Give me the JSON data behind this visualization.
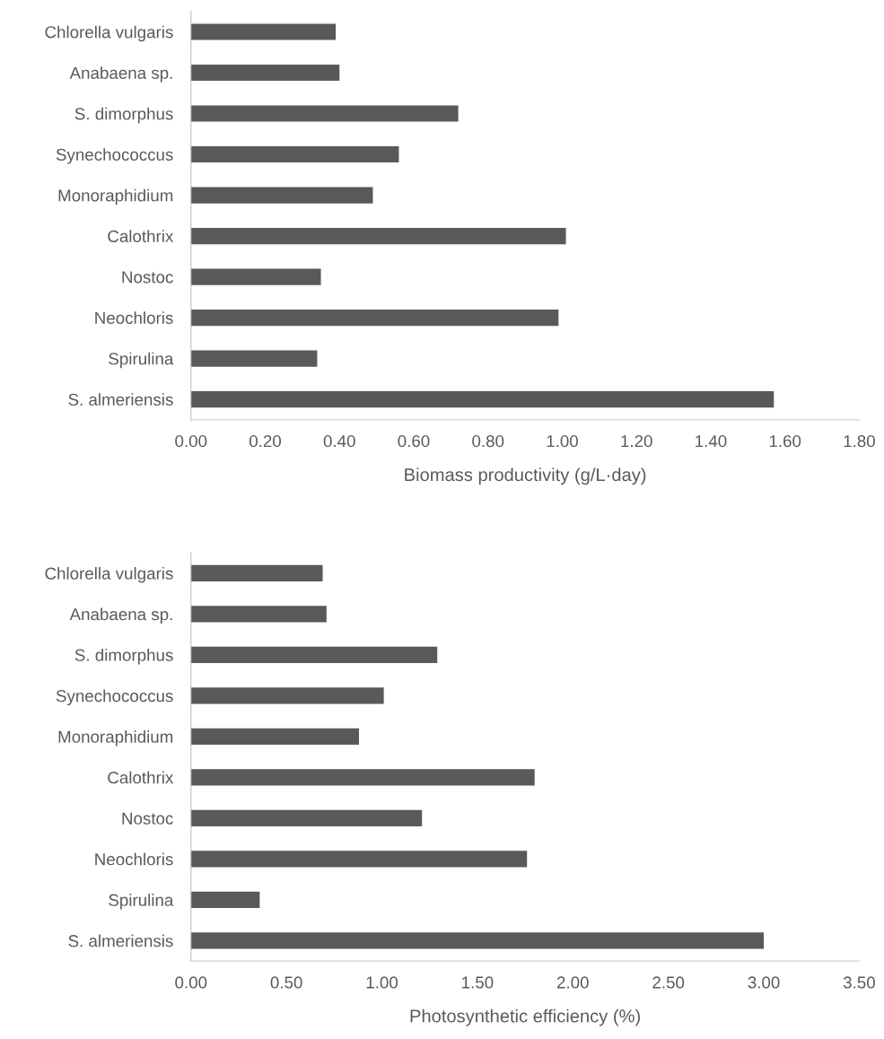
{
  "chart_data": [
    {
      "type": "bar",
      "orientation": "horizontal",
      "xlabel": "Biomass productivity (g/L·day)",
      "categories": [
        "Chlorella vulgaris",
        "Anabaena sp.",
        "S. dimorphus",
        "Synechococcus",
        "Monoraphidium",
        "Calothrix",
        "Nostoc",
        "Neochloris",
        "Spirulina",
        "S. almeriensis"
      ],
      "values": [
        0.39,
        0.4,
        0.72,
        0.56,
        0.49,
        1.01,
        0.35,
        0.99,
        0.34,
        1.57
      ],
      "color": "#595959",
      "xlim": [
        0,
        1.8
      ],
      "xticks": [
        {
          "value": 0,
          "label": "0.00"
        },
        {
          "value": 0.2,
          "label": "0.20"
        },
        {
          "value": 0.4,
          "label": "0.40"
        },
        {
          "value": 0.6,
          "label": "0.60"
        },
        {
          "value": 0.8,
          "label": "0.80"
        },
        {
          "value": 1.0,
          "label": "1.00"
        },
        {
          "value": 1.2,
          "label": "1.20"
        },
        {
          "value": 1.4,
          "label": "1.40"
        },
        {
          "value": 1.6,
          "label": "1.60"
        },
        {
          "value": 1.8,
          "label": "1.80"
        }
      ],
      "grid": false,
      "legend": false
    },
    {
      "type": "bar",
      "orientation": "horizontal",
      "xlabel": "Photosynthetic efficiency (%)",
      "categories": [
        "Chlorella vulgaris",
        "Anabaena sp.",
        "S. dimorphus",
        "Synechococcus",
        "Monoraphidium",
        "Calothrix",
        "Nostoc",
        "Neochloris",
        "Spirulina",
        "S. almeriensis"
      ],
      "values": [
        0.69,
        0.71,
        1.29,
        1.01,
        0.88,
        1.8,
        1.21,
        1.76,
        0.36,
        3.0
      ],
      "color": "#595959",
      "xlim": [
        0,
        3.5
      ],
      "xticks": [
        {
          "value": 0,
          "label": "0.00"
        },
        {
          "value": 0.5,
          "label": "0.50"
        },
        {
          "value": 1.0,
          "label": "1.00"
        },
        {
          "value": 1.5,
          "label": "1.50"
        },
        {
          "value": 2.0,
          "label": "2.00"
        },
        {
          "value": 2.5,
          "label": "2.50"
        },
        {
          "value": 3.0,
          "label": "3.00"
        },
        {
          "value": 3.5,
          "label": "3.50"
        }
      ],
      "grid": false,
      "legend": false
    }
  ]
}
